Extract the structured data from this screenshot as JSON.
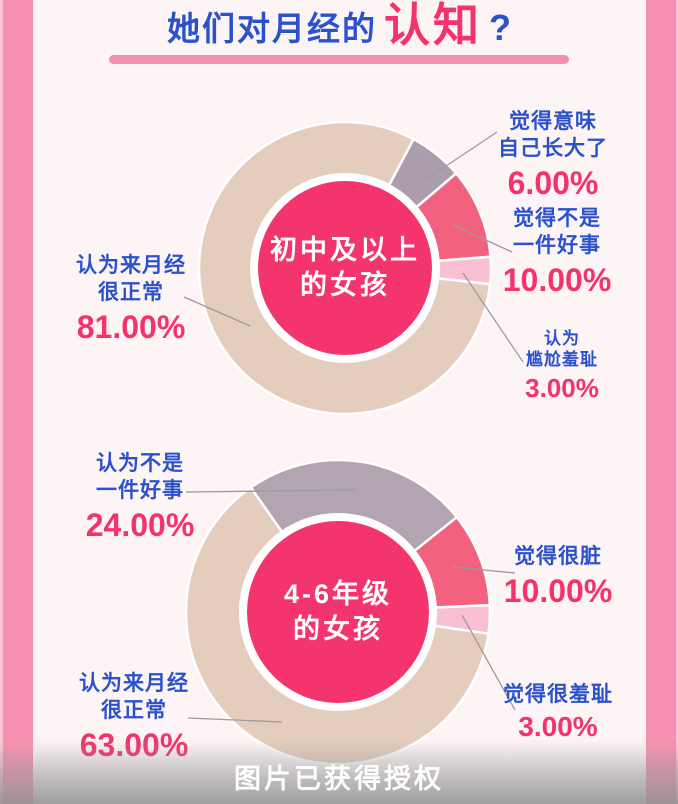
{
  "title": {
    "prefix": "她们对月经的",
    "highlight": "认知",
    "question_mark": "?",
    "prefix_color": "#2b52cb",
    "highlight_color": "#f4326e",
    "underline_color": "#f28fb1"
  },
  "footer": {
    "text": "图片已获得授权"
  },
  "colors": {
    "background": "#fdf4f5",
    "side_border": "#f891b1",
    "side_border_edge": "#fcc5d7",
    "center_circle": "#f4346c",
    "label_blue": "#2b52cb",
    "percent_pink": "#f4326e",
    "leader_line": "#9b9b9b",
    "watermark_text": "#ffffff"
  },
  "chart_data": [
    {
      "type": "pie",
      "title": "初中及以上的女孩",
      "center_lines": [
        "初中及以上",
        "的女孩"
      ],
      "unit": "%",
      "start_angle_deg": 28,
      "legend_position": "callout-labels",
      "slices": [
        {
          "label": "觉得意味自己长大了",
          "label_lines": [
            "觉得意味",
            "自己长大了"
          ],
          "value": 6,
          "pct_label": "6.00%",
          "color": "#ab9dab"
        },
        {
          "label": "觉得不是一件好事",
          "label_lines": [
            "觉得不是",
            "一件好事"
          ],
          "value": 10,
          "pct_label": "10.00%",
          "color": "#f2627f"
        },
        {
          "label": "认为尴尬羞耻",
          "label_lines": [
            "认为",
            "尴尬羞耻"
          ],
          "value": 3,
          "pct_label": "3.00%",
          "color": "#f9c0d3"
        },
        {
          "label": "认为来月经很正常",
          "label_lines": [
            "认为来月经",
            "很正常"
          ],
          "value": 81,
          "pct_label": "81.00%",
          "color": "#e5cdbe"
        }
      ]
    },
    {
      "type": "pie",
      "title": "4-6年级的女孩",
      "center_lines": [
        "4-6年级",
        "的女孩"
      ],
      "unit": "%",
      "start_angle_deg": -35,
      "legend_position": "callout-labels",
      "slices": [
        {
          "label": "认为不是一件好事",
          "label_lines": [
            "认为不是",
            "一件好事"
          ],
          "value": 24,
          "pct_label": "24.00%",
          "color": "#b3a4b2"
        },
        {
          "label": "觉得很脏",
          "label_lines": [
            "觉得很脏"
          ],
          "value": 10,
          "pct_label": "10.00%",
          "color": "#f2627f"
        },
        {
          "label": "觉得很羞耻",
          "label_lines": [
            "觉得很羞耻"
          ],
          "value": 3,
          "pct_label": "3.00%",
          "color": "#f9c0d3"
        },
        {
          "label": "认为来月经很正常",
          "label_lines": [
            "认为来月经",
            "很正常"
          ],
          "value": 63,
          "pct_label": "63.00%",
          "color": "#e5cdbe"
        }
      ]
    }
  ]
}
